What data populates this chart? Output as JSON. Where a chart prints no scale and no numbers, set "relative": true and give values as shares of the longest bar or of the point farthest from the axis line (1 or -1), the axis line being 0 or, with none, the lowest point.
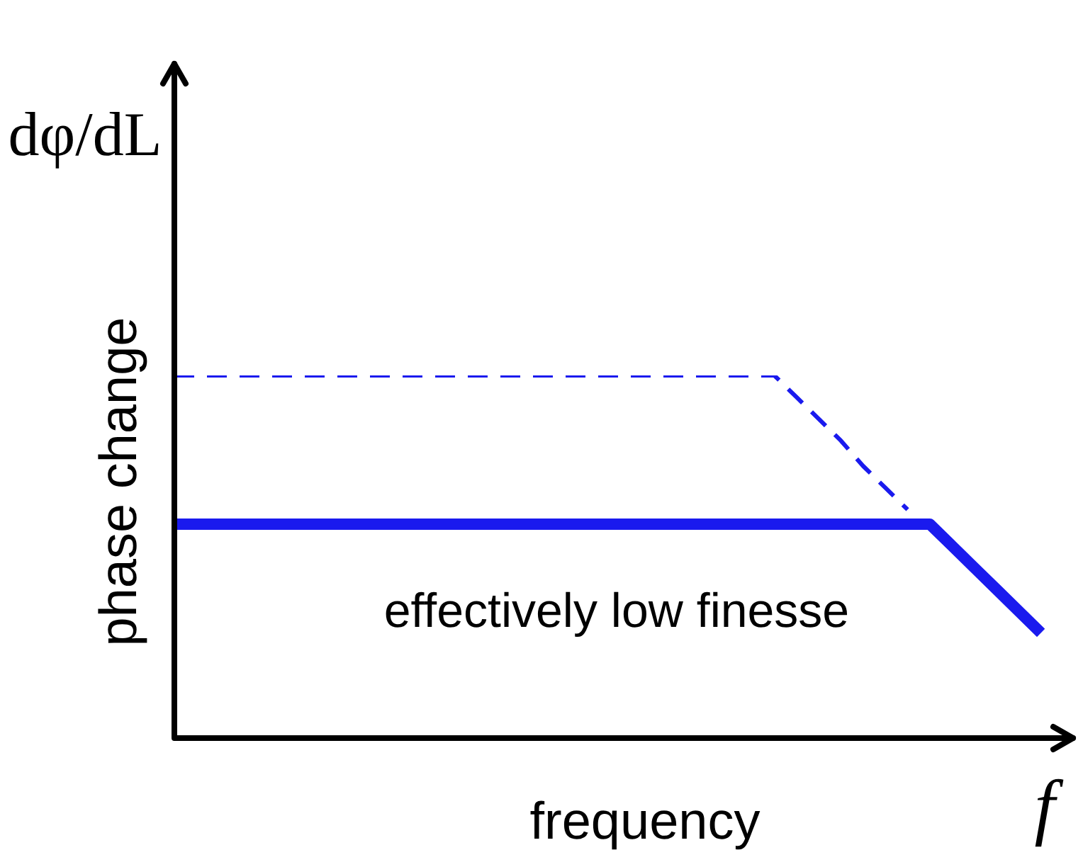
{
  "chart_data": {
    "type": "line",
    "relative": true,
    "xlabel": "frequency",
    "ylabel": "phase change",
    "legend": false,
    "marker": "none",
    "annotations": [
      "dφ/dL",
      "f",
      "effectively low finesse"
    ],
    "categories": [
      null,
      null,
      null,
      null,
      null,
      null,
      null,
      null,
      null,
      null,
      null,
      null,
      null,
      null,
      null,
      null,
      null,
      null,
      null,
      null,
      null,
      null,
      null,
      null,
      null,
      null,
      null,
      null,
      null,
      null,
      null,
      null,
      null,
      null,
      null,
      null,
      null,
      null,
      null,
      null,
      null
    ],
    "series": [
      {
        "color": "#1a1aee",
        "line_style": "dashed",
        "values": [
          1,
          1,
          1,
          1,
          1,
          1,
          1,
          1,
          1,
          1,
          1,
          1,
          1,
          1,
          1,
          1,
          1,
          1,
          1,
          1,
          1,
          1,
          1,
          1,
          1,
          1,
          1,
          1,
          0.94,
          0.88,
          0.82,
          0.75,
          0.69,
          0.63,
          null,
          null,
          null,
          null,
          null,
          null,
          null
        ]
      },
      {
        "color": "#1a1aee",
        "line_style": "solid",
        "values": [
          0.59,
          0.59,
          0.59,
          0.59,
          0.59,
          0.59,
          0.59,
          0.59,
          0.59,
          0.59,
          0.59,
          0.59,
          0.59,
          0.59,
          0.59,
          0.59,
          0.59,
          0.59,
          0.59,
          0.59,
          0.59,
          0.59,
          0.59,
          0.59,
          0.59,
          0.59,
          0.59,
          0.59,
          0.59,
          0.59,
          0.59,
          0.59,
          0.59,
          0.59,
          0.59,
          0.53,
          0.47,
          0.41,
          0.35,
          0.29,
          null
        ]
      }
    ]
  }
}
